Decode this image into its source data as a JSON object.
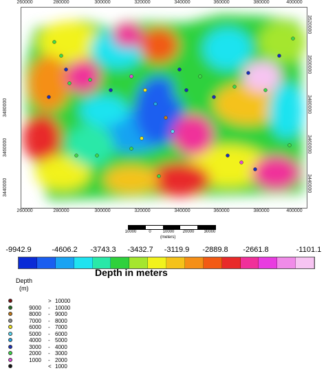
{
  "map": {
    "x_ticks": [
      "260000",
      "280000",
      "300000",
      "320000",
      "340000",
      "360000",
      "380000",
      "400000"
    ],
    "y_ticks": [
      "3520000",
      "3500000",
      "3480000",
      "3460000",
      "3440000"
    ],
    "y_ticks_left": [
      "3480000",
      "3460000",
      "3440000"
    ]
  },
  "scalebar": {
    "labels": [
      "10000",
      "0",
      "10000",
      "20000",
      "30000"
    ],
    "unit": "(meters)"
  },
  "colorbar": {
    "labels": [
      "-9942.9",
      "-4606.2",
      "-3743.3",
      "-3432.7",
      "-3119.9",
      "-2889.8",
      "-2661.8",
      "-1101.1"
    ],
    "colors": [
      "#0a2bd6",
      "#1a5ef0",
      "#19a3f2",
      "#1fe3f0",
      "#29e8a8",
      "#2fd13c",
      "#a5e62e",
      "#f2f21c",
      "#f5c21a",
      "#f58f17",
      "#f25a14",
      "#e82a2a",
      "#f0309a",
      "#e83ce0",
      "#f08be8",
      "#f7c4f2"
    ],
    "title": "Depth in  meters"
  },
  "legend": {
    "title": "Depth",
    "unit": "(m)",
    "rows": [
      {
        "lo": "",
        "op": ">",
        "hi": "10000",
        "color": "#7a1010"
      },
      {
        "lo": "9000",
        "op": "-",
        "hi": "10000",
        "color": "#1f6b1f"
      },
      {
        "lo": "8000",
        "op": "-",
        "hi": "9000",
        "color": "#c47a18"
      },
      {
        "lo": "7000",
        "op": "-",
        "hi": "8000",
        "color": "#8a8a8a"
      },
      {
        "lo": "6000",
        "op": "-",
        "hi": "7000",
        "color": "#f2e61c"
      },
      {
        "lo": "5000",
        "op": "-",
        "hi": "6000",
        "color": "#58d8f5"
      },
      {
        "lo": "4000",
        "op": "-",
        "hi": "5000",
        "color": "#23a8e6"
      },
      {
        "lo": "3000",
        "op": "-",
        "hi": "4000",
        "color": "#1a2fb8"
      },
      {
        "lo": "2000",
        "op": "-",
        "hi": "3000",
        "color": "#3fd84a"
      },
      {
        "lo": "1000",
        "op": "-",
        "hi": "2000",
        "color": "#e04ad8"
      },
      {
        "lo": "",
        "op": "<",
        "hi": "1000",
        "color": "#111111"
      }
    ]
  }
}
